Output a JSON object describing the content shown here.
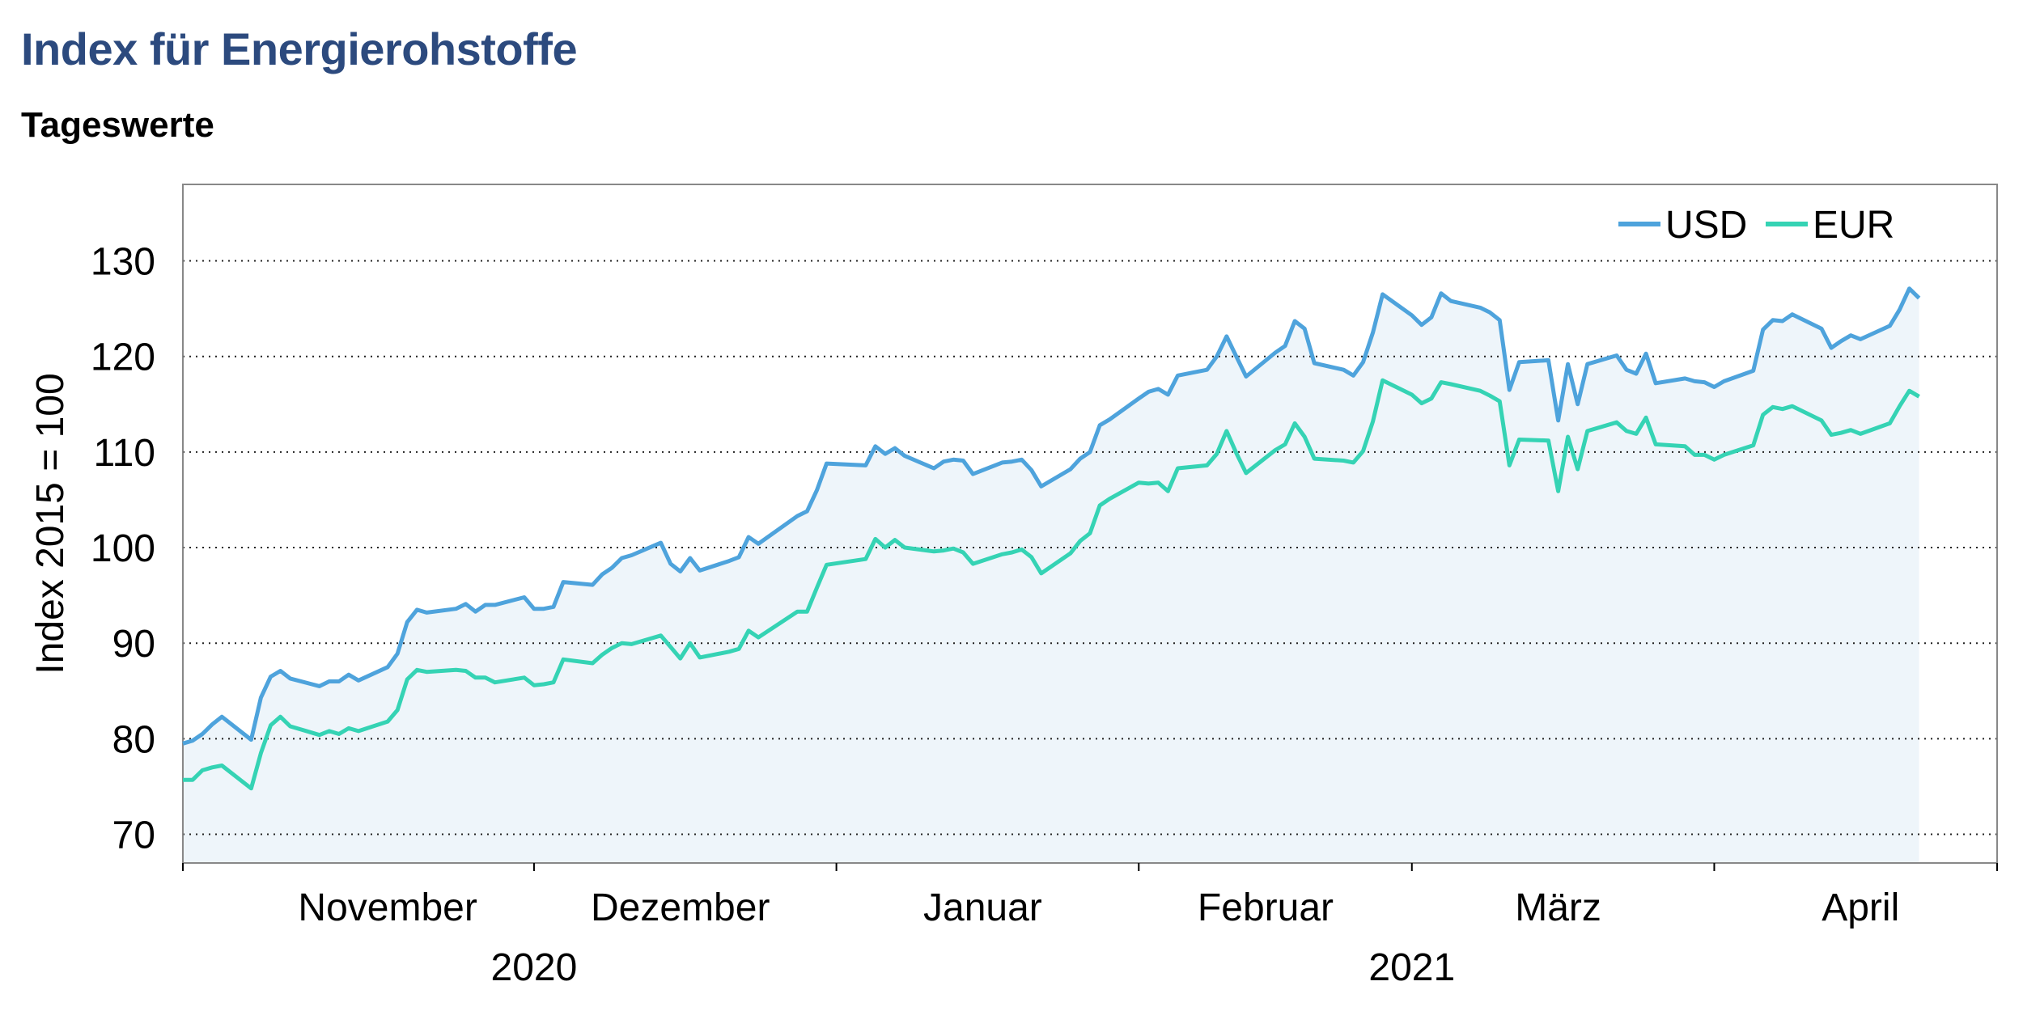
{
  "header": {
    "title": "Index für Energierohstoffe",
    "subtitle": "Tageswerte"
  },
  "chart_data": {
    "type": "area",
    "title": "Index für Energierohstoffe",
    "subtitle": "Tageswerte",
    "ylabel": "Index 2015 = 100",
    "xlabel": "",
    "ylim": [
      67,
      138
    ],
    "yticks": [
      70,
      80,
      90,
      100,
      110,
      120,
      130
    ],
    "grid": "horizontal dotted",
    "legend_position": "top-right",
    "x_range": [
      "2020-10-26",
      "2021-04-30"
    ],
    "month_labels": [
      {
        "label": "November",
        "date": "2020-11-16"
      },
      {
        "label": "Dezember",
        "date": "2020-12-16"
      },
      {
        "label": "Januar",
        "date": "2021-01-16"
      },
      {
        "label": "Februar",
        "date": "2021-02-14"
      },
      {
        "label": "März",
        "date": "2021-03-16"
      },
      {
        "label": "April",
        "date": "2021-04-16"
      }
    ],
    "month_ticks": [
      "2020-10-26",
      "2020-12-01",
      "2021-01-01",
      "2021-02-01",
      "2021-03-01",
      "2021-04-01",
      "2021-04-30"
    ],
    "year_labels": [
      {
        "label": "2020",
        "date": "2020-12-01"
      },
      {
        "label": "2021",
        "date": "2021-03-01"
      }
    ],
    "colors": {
      "USD": "#4ea3dc",
      "EUR": "#35d3b4",
      "fill": "#eef5fa",
      "grid": "#222222",
      "frame": "#888888"
    },
    "series": [
      {
        "name": "USD",
        "points": [
          [
            "2020-10-26",
            79.5
          ],
          [
            "2020-10-27",
            79.8
          ],
          [
            "2020-10-28",
            80.5
          ],
          [
            "2020-10-29",
            81.5
          ],
          [
            "2020-10-30",
            82.3
          ],
          [
            "2020-11-02",
            79.9
          ],
          [
            "2020-11-03",
            84.3
          ],
          [
            "2020-11-04",
            86.5
          ],
          [
            "2020-11-05",
            87.1
          ],
          [
            "2020-11-06",
            86.3
          ],
          [
            "2020-11-09",
            85.5
          ],
          [
            "2020-11-10",
            86.0
          ],
          [
            "2020-11-11",
            86.0
          ],
          [
            "2020-11-12",
            86.7
          ],
          [
            "2020-11-13",
            86.1
          ],
          [
            "2020-11-16",
            87.5
          ],
          [
            "2020-11-17",
            88.9
          ],
          [
            "2020-11-18",
            92.2
          ],
          [
            "2020-11-19",
            93.5
          ],
          [
            "2020-11-20",
            93.2
          ],
          [
            "2020-11-23",
            93.6
          ],
          [
            "2020-11-24",
            94.1
          ],
          [
            "2020-11-25",
            93.3
          ],
          [
            "2020-11-26",
            94.0
          ],
          [
            "2020-11-27",
            94.0
          ],
          [
            "2020-11-30",
            94.8
          ],
          [
            "2020-12-01",
            93.6
          ],
          [
            "2020-12-02",
            93.6
          ],
          [
            "2020-12-03",
            93.8
          ],
          [
            "2020-12-04",
            96.4
          ],
          [
            "2020-12-07",
            96.1
          ],
          [
            "2020-12-08",
            97.2
          ],
          [
            "2020-12-09",
            97.9
          ],
          [
            "2020-12-10",
            98.9
          ],
          [
            "2020-12-11",
            99.2
          ],
          [
            "2020-12-14",
            100.5
          ],
          [
            "2020-12-15",
            98.3
          ],
          [
            "2020-12-16",
            97.5
          ],
          [
            "2020-12-17",
            98.9
          ],
          [
            "2020-12-18",
            97.6
          ],
          [
            "2020-12-21",
            98.6
          ],
          [
            "2020-12-22",
            99.0
          ],
          [
            "2020-12-23",
            101.1
          ],
          [
            "2020-12-24",
            100.4
          ],
          [
            "2020-12-28",
            103.3
          ],
          [
            "2020-12-29",
            103.8
          ],
          [
            "2020-12-30",
            106.0
          ],
          [
            "2020-12-31",
            108.8
          ],
          [
            "2021-01-04",
            108.6
          ],
          [
            "2021-01-05",
            110.6
          ],
          [
            "2021-01-06",
            109.8
          ],
          [
            "2021-01-07",
            110.4
          ],
          [
            "2021-01-08",
            109.6
          ],
          [
            "2021-01-11",
            108.3
          ],
          [
            "2021-01-12",
            109.0
          ],
          [
            "2021-01-13",
            109.2
          ],
          [
            "2021-01-14",
            109.1
          ],
          [
            "2021-01-15",
            107.7
          ],
          [
            "2021-01-18",
            108.9
          ],
          [
            "2021-01-19",
            109.0
          ],
          [
            "2021-01-20",
            109.2
          ],
          [
            "2021-01-21",
            108.1
          ],
          [
            "2021-01-22",
            106.4
          ],
          [
            "2021-01-25",
            108.2
          ],
          [
            "2021-01-26",
            109.3
          ],
          [
            "2021-01-27",
            110.0
          ],
          [
            "2021-01-28",
            112.8
          ],
          [
            "2021-01-29",
            113.4
          ],
          [
            "2021-02-01",
            115.6
          ],
          [
            "2021-02-02",
            116.3
          ],
          [
            "2021-02-03",
            116.6
          ],
          [
            "2021-02-04",
            116.0
          ],
          [
            "2021-02-05",
            118.0
          ],
          [
            "2021-02-08",
            118.6
          ],
          [
            "2021-02-09",
            120.0
          ],
          [
            "2021-02-10",
            122.1
          ],
          [
            "2021-02-11",
            120.0
          ],
          [
            "2021-02-12",
            117.9
          ],
          [
            "2021-02-15",
            120.4
          ],
          [
            "2021-02-16",
            121.1
          ],
          [
            "2021-02-17",
            123.7
          ],
          [
            "2021-02-18",
            122.9
          ],
          [
            "2021-02-19",
            119.3
          ],
          [
            "2021-02-22",
            118.6
          ],
          [
            "2021-02-23",
            118.0
          ],
          [
            "2021-02-24",
            119.4
          ],
          [
            "2021-02-25",
            122.5
          ],
          [
            "2021-02-26",
            126.5
          ],
          [
            "2021-03-01",
            124.3
          ],
          [
            "2021-03-02",
            123.3
          ],
          [
            "2021-03-03",
            124.1
          ],
          [
            "2021-03-04",
            126.6
          ],
          [
            "2021-03-05",
            125.8
          ],
          [
            "2021-03-08",
            125.1
          ],
          [
            "2021-03-09",
            124.6
          ],
          [
            "2021-03-10",
            123.8
          ],
          [
            "2021-03-11",
            116.5
          ],
          [
            "2021-03-12",
            119.4
          ],
          [
            "2021-03-15",
            119.6
          ],
          [
            "2021-03-16",
            113.3
          ],
          [
            "2021-03-17",
            119.2
          ],
          [
            "2021-03-18",
            115.0
          ],
          [
            "2021-03-19",
            119.2
          ],
          [
            "2021-03-22",
            120.1
          ],
          [
            "2021-03-23",
            118.6
          ],
          [
            "2021-03-24",
            118.2
          ],
          [
            "2021-03-25",
            120.3
          ],
          [
            "2021-03-26",
            117.2
          ],
          [
            "2021-03-29",
            117.7
          ],
          [
            "2021-03-30",
            117.4
          ],
          [
            "2021-03-31",
            117.3
          ],
          [
            "2021-04-01",
            116.8
          ],
          [
            "2021-04-02",
            117.4
          ],
          [
            "2021-04-05",
            118.5
          ],
          [
            "2021-04-06",
            122.8
          ],
          [
            "2021-04-07",
            123.8
          ],
          [
            "2021-04-08",
            123.7
          ],
          [
            "2021-04-09",
            124.4
          ],
          [
            "2021-04-12",
            122.9
          ],
          [
            "2021-04-13",
            120.9
          ],
          [
            "2021-04-14",
            121.6
          ],
          [
            "2021-04-15",
            122.2
          ],
          [
            "2021-04-16",
            121.8
          ],
          [
            "2021-04-19",
            123.2
          ],
          [
            "2021-04-20",
            124.9
          ],
          [
            "2021-04-21",
            127.1
          ],
          [
            "2021-04-22",
            126.1
          ]
        ]
      },
      {
        "name": "EUR",
        "points": [
          [
            "2020-10-26",
            75.7
          ],
          [
            "2020-10-27",
            75.7
          ],
          [
            "2020-10-28",
            76.7
          ],
          [
            "2020-10-29",
            77.0
          ],
          [
            "2020-10-30",
            77.2
          ],
          [
            "2020-11-02",
            74.8
          ],
          [
            "2020-11-03",
            78.5
          ],
          [
            "2020-11-04",
            81.4
          ],
          [
            "2020-11-05",
            82.3
          ],
          [
            "2020-11-06",
            81.3
          ],
          [
            "2020-11-09",
            80.4
          ],
          [
            "2020-11-10",
            80.8
          ],
          [
            "2020-11-11",
            80.5
          ],
          [
            "2020-11-12",
            81.1
          ],
          [
            "2020-11-13",
            80.8
          ],
          [
            "2020-11-16",
            81.8
          ],
          [
            "2020-11-17",
            83.0
          ],
          [
            "2020-11-18",
            86.2
          ],
          [
            "2020-11-19",
            87.2
          ],
          [
            "2020-11-20",
            87.0
          ],
          [
            "2020-11-23",
            87.2
          ],
          [
            "2020-11-24",
            87.1
          ],
          [
            "2020-11-25",
            86.4
          ],
          [
            "2020-11-26",
            86.4
          ],
          [
            "2020-11-27",
            85.9
          ],
          [
            "2020-11-30",
            86.4
          ],
          [
            "2020-12-01",
            85.6
          ],
          [
            "2020-12-02",
            85.7
          ],
          [
            "2020-12-03",
            85.9
          ],
          [
            "2020-12-04",
            88.3
          ],
          [
            "2020-12-07",
            87.9
          ],
          [
            "2020-12-08",
            88.8
          ],
          [
            "2020-12-09",
            89.5
          ],
          [
            "2020-12-10",
            90.0
          ],
          [
            "2020-12-11",
            89.9
          ],
          [
            "2020-12-14",
            90.8
          ],
          [
            "2020-12-15",
            89.6
          ],
          [
            "2020-12-16",
            88.4
          ],
          [
            "2020-12-17",
            90.0
          ],
          [
            "2020-12-18",
            88.5
          ],
          [
            "2020-12-21",
            89.1
          ],
          [
            "2020-12-22",
            89.4
          ],
          [
            "2020-12-23",
            91.3
          ],
          [
            "2020-12-24",
            90.6
          ],
          [
            "2020-12-28",
            93.3
          ],
          [
            "2020-12-29",
            93.3
          ],
          [
            "2020-12-30",
            95.8
          ],
          [
            "2020-12-31",
            98.2
          ],
          [
            "2021-01-04",
            98.8
          ],
          [
            "2021-01-05",
            100.9
          ],
          [
            "2021-01-06",
            100.0
          ],
          [
            "2021-01-07",
            100.8
          ],
          [
            "2021-01-08",
            100.0
          ],
          [
            "2021-01-11",
            99.6
          ],
          [
            "2021-01-12",
            99.7
          ],
          [
            "2021-01-13",
            99.9
          ],
          [
            "2021-01-14",
            99.5
          ],
          [
            "2021-01-15",
            98.3
          ],
          [
            "2021-01-18",
            99.3
          ],
          [
            "2021-01-19",
            99.5
          ],
          [
            "2021-01-20",
            99.8
          ],
          [
            "2021-01-21",
            99.0
          ],
          [
            "2021-01-22",
            97.3
          ],
          [
            "2021-01-25",
            99.4
          ],
          [
            "2021-01-26",
            100.7
          ],
          [
            "2021-01-27",
            101.5
          ],
          [
            "2021-01-28",
            104.4
          ],
          [
            "2021-01-29",
            105.1
          ],
          [
            "2021-02-01",
            106.8
          ],
          [
            "2021-02-02",
            106.7
          ],
          [
            "2021-02-03",
            106.8
          ],
          [
            "2021-02-04",
            105.9
          ],
          [
            "2021-02-05",
            108.3
          ],
          [
            "2021-02-08",
            108.6
          ],
          [
            "2021-02-09",
            109.8
          ],
          [
            "2021-02-10",
            112.2
          ],
          [
            "2021-02-11",
            109.9
          ],
          [
            "2021-02-12",
            107.8
          ],
          [
            "2021-02-15",
            110.2
          ],
          [
            "2021-02-16",
            110.8
          ],
          [
            "2021-02-17",
            113.0
          ],
          [
            "2021-02-18",
            111.6
          ],
          [
            "2021-02-19",
            109.3
          ],
          [
            "2021-02-22",
            109.1
          ],
          [
            "2021-02-23",
            108.9
          ],
          [
            "2021-02-24",
            110.1
          ],
          [
            "2021-02-25",
            113.2
          ],
          [
            "2021-02-26",
            117.5
          ],
          [
            "2021-03-01",
            116.0
          ],
          [
            "2021-03-02",
            115.1
          ],
          [
            "2021-03-03",
            115.6
          ],
          [
            "2021-03-04",
            117.3
          ],
          [
            "2021-03-05",
            117.1
          ],
          [
            "2021-03-08",
            116.4
          ],
          [
            "2021-03-09",
            115.9
          ],
          [
            "2021-03-10",
            115.3
          ],
          [
            "2021-03-11",
            108.6
          ],
          [
            "2021-03-12",
            111.3
          ],
          [
            "2021-03-15",
            111.2
          ],
          [
            "2021-03-16",
            105.9
          ],
          [
            "2021-03-17",
            111.6
          ],
          [
            "2021-03-18",
            108.2
          ],
          [
            "2021-03-19",
            112.2
          ],
          [
            "2021-03-22",
            113.1
          ],
          [
            "2021-03-23",
            112.2
          ],
          [
            "2021-03-24",
            111.9
          ],
          [
            "2021-03-25",
            113.6
          ],
          [
            "2021-03-26",
            110.8
          ],
          [
            "2021-03-29",
            110.6
          ],
          [
            "2021-03-30",
            109.7
          ],
          [
            "2021-03-31",
            109.7
          ],
          [
            "2021-04-01",
            109.2
          ],
          [
            "2021-04-02",
            109.7
          ],
          [
            "2021-04-05",
            110.7
          ],
          [
            "2021-04-06",
            113.9
          ],
          [
            "2021-04-07",
            114.7
          ],
          [
            "2021-04-08",
            114.5
          ],
          [
            "2021-04-09",
            114.8
          ],
          [
            "2021-04-12",
            113.3
          ],
          [
            "2021-04-13",
            111.8
          ],
          [
            "2021-04-14",
            112.0
          ],
          [
            "2021-04-15",
            112.3
          ],
          [
            "2021-04-16",
            111.9
          ],
          [
            "2021-04-19",
            113.0
          ],
          [
            "2021-04-20",
            114.8
          ],
          [
            "2021-04-21",
            116.4
          ],
          [
            "2021-04-22",
            115.8
          ]
        ]
      }
    ]
  }
}
